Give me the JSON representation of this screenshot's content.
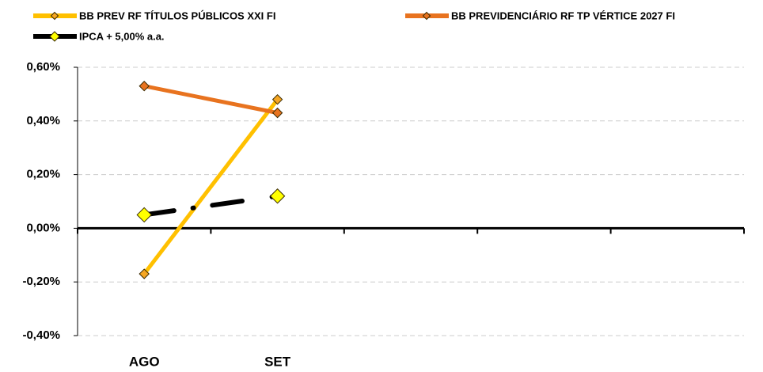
{
  "chart_data": {
    "type": "line",
    "categories": [
      "AGO",
      "SET",
      null,
      null,
      null
    ],
    "series": [
      {
        "name": "BB PREV RF TÍTULOS PÚBLICOS XXI FI",
        "color": "#ffc000",
        "marker_color": "#f5a623",
        "values": [
          -0.17,
          0.48,
          null,
          null,
          null
        ]
      },
      {
        "name": "BB PREVIDENCIÁRIO RF TP VÉRTICE 2027 FI",
        "color": "#e8731f",
        "marker_color": "#e8731f",
        "values": [
          0.53,
          0.43,
          null,
          null,
          null
        ]
      },
      {
        "name": "IPCA + 5,00% a.a.",
        "color": "#000000",
        "marker_color": "#ffff00",
        "values": [
          0.05,
          0.12,
          null,
          null,
          null
        ]
      }
    ],
    "ylim": [
      -0.4,
      0.6
    ],
    "yticks": [
      {
        "value": -0.4,
        "label": "-0,40%"
      },
      {
        "value": -0.2,
        "label": "-0,20%"
      },
      {
        "value": 0,
        "label": "0,00%"
      },
      {
        "value": 0.2,
        "label": "0,20%"
      },
      {
        "value": 0.4,
        "label": "0,40%"
      },
      {
        "value": 0.6,
        "label": "0,60%"
      }
    ],
    "grid": true
  }
}
